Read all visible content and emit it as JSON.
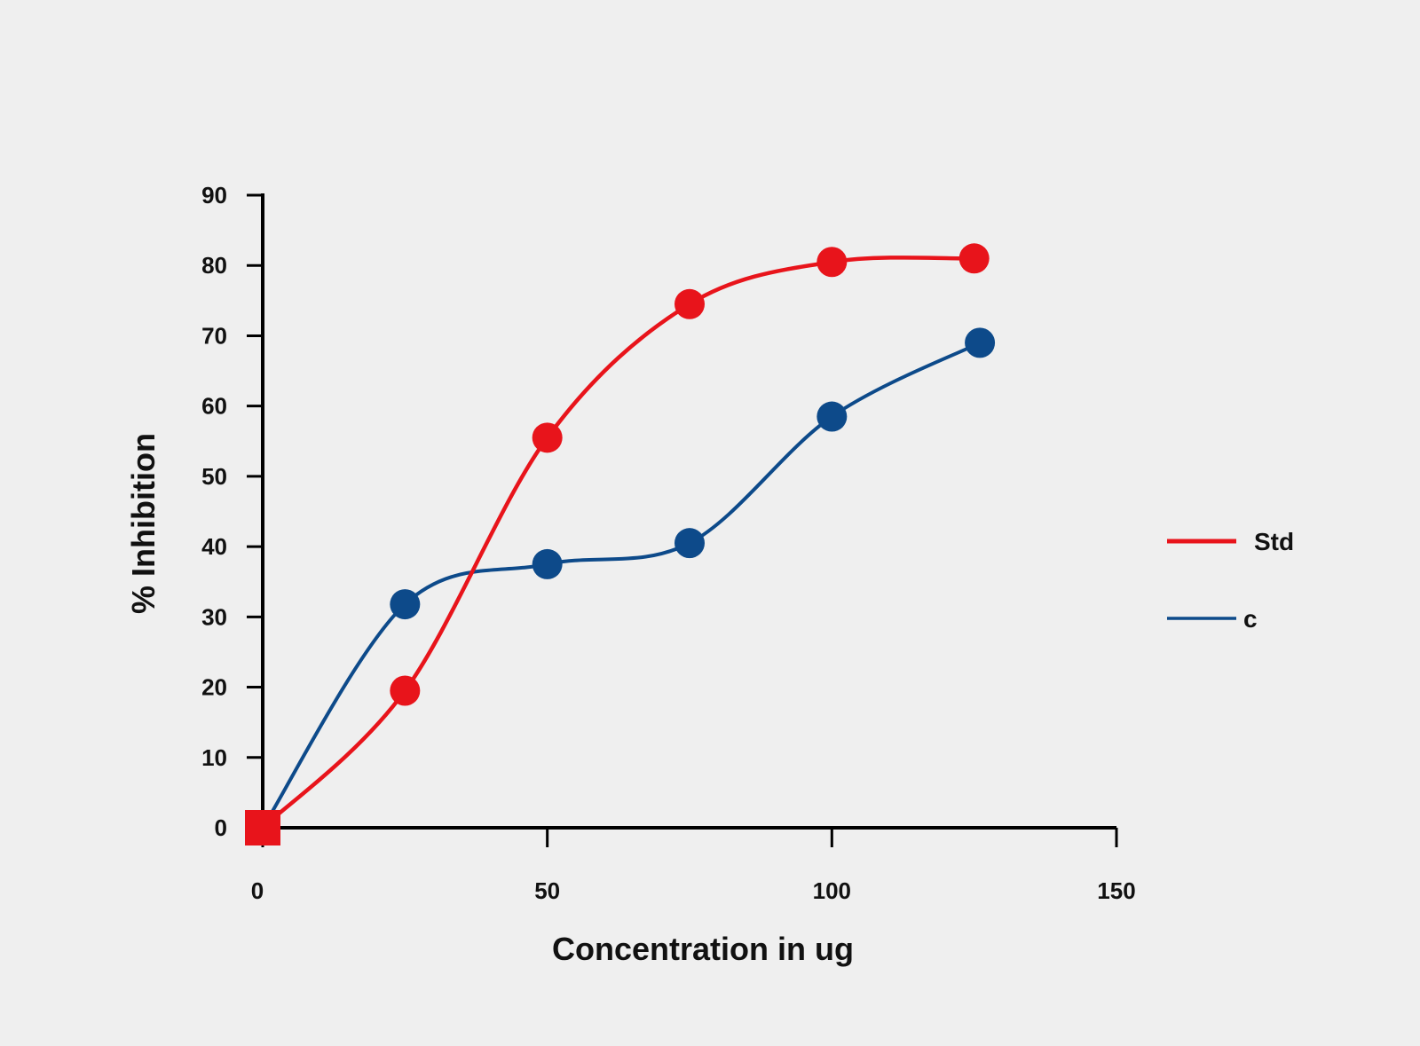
{
  "chart_data": {
    "type": "line",
    "title": "",
    "xlabel": "Concentration in ug",
    "ylabel": "% Inhibition",
    "xlim": [
      0,
      150
    ],
    "ylim": [
      0,
      90
    ],
    "x_ticks": [
      0,
      50,
      100,
      150
    ],
    "y_ticks": [
      0,
      10,
      20,
      30,
      40,
      50,
      60,
      70,
      80,
      90
    ],
    "grid": false,
    "legend_position": "right",
    "series": [
      {
        "name": "Std",
        "color": "#e8141b",
        "smooth": true,
        "x": [
          0,
          25,
          50,
          75,
          100,
          125
        ],
        "y": [
          0,
          19.5,
          55.5,
          74.5,
          80.5,
          81
        ]
      },
      {
        "name": "c",
        "color": "#0d4a8a",
        "smooth": true,
        "x": [
          0,
          25,
          50,
          75,
          100,
          126
        ],
        "y": [
          0,
          31.8,
          37.5,
          40.5,
          58.5,
          69
        ]
      }
    ]
  }
}
